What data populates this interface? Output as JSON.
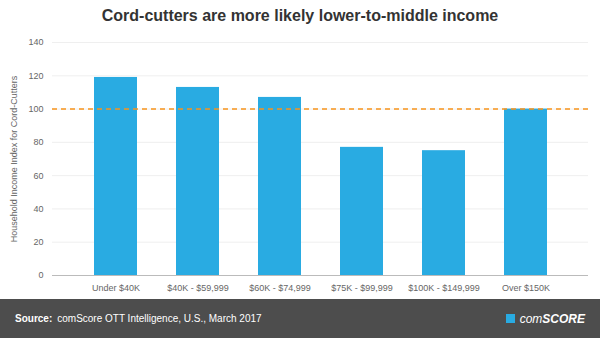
{
  "chart_data": {
    "type": "bar",
    "title": "Cord-cutters are more likely lower-to-middle income",
    "categories": [
      "Under $40K",
      "$40K - $59,999",
      "$60K - $74,999",
      "$75K - $99,999",
      "$100K - $149,999",
      "Over $150K"
    ],
    "values": [
      119,
      113,
      107,
      77,
      75,
      100
    ],
    "color": "#29ABE2",
    "ylabel": "Household Income Index for Cord-Cutters",
    "ylim": [
      0,
      140
    ],
    "yticks": [
      0,
      20,
      40,
      60,
      80,
      100,
      120,
      140
    ],
    "grid": true,
    "reference_line": {
      "value": 100,
      "color": "#F7941D",
      "line_style": "dashed"
    },
    "footer": {
      "source_label": "Source:",
      "source_text": "comScore OTT Intelligence, U.S., March 2017",
      "logo_parts": [
        "com",
        "SCORE"
      ],
      "logo_color": "#29ABE2",
      "color": "#4D4D4D",
      "text_color": "#FFFFFF"
    }
  }
}
